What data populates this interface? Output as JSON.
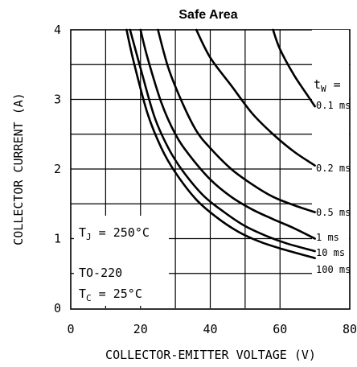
{
  "chart_data": {
    "type": "line",
    "title": "Safe Area",
    "xlabel": "COLLECTOR-EMITTER VOLTAGE (V)",
    "ylabel": "COLLECTOR CURRENT (A)",
    "xlim": [
      0,
      80
    ],
    "ylim": [
      0,
      4
    ],
    "x_ticks": [
      "0",
      "20",
      "40",
      "60",
      "80"
    ],
    "y_ticks": [
      "0",
      "1",
      "2",
      "3",
      "4"
    ],
    "grid": true,
    "legend_header": "tW =",
    "annotation": {
      "line1": "TJ = 250°C",
      "line2": "TO-220",
      "line3": "TC = 25°C"
    },
    "series": [
      {
        "name": "0.1 ms",
        "x": [
          58,
          60,
          64,
          68,
          70
        ],
        "y": [
          4.0,
          3.72,
          3.35,
          3.05,
          2.9
        ]
      },
      {
        "name": "0.2 ms",
        "x": [
          36,
          40,
          46,
          52,
          58,
          64,
          70
        ],
        "y": [
          4.0,
          3.6,
          3.2,
          2.8,
          2.5,
          2.25,
          2.05
        ]
      },
      {
        "name": "0.5 ms",
        "x": [
          25,
          28,
          32,
          36,
          40,
          46,
          52,
          58,
          64,
          70
        ],
        "y": [
          4.0,
          3.45,
          2.95,
          2.55,
          2.3,
          2.0,
          1.78,
          1.6,
          1.48,
          1.38
        ]
      },
      {
        "name": "1 ms",
        "x": [
          20,
          22,
          26,
          30,
          34,
          40,
          46,
          52,
          58,
          64,
          70
        ],
        "y": [
          4.0,
          3.6,
          2.95,
          2.5,
          2.2,
          1.85,
          1.6,
          1.42,
          1.28,
          1.15,
          1.0
        ]
      },
      {
        "name": "10 ms",
        "x": [
          17,
          20,
          24,
          28,
          32,
          38,
          44,
          50,
          56,
          62,
          70
        ],
        "y": [
          4.0,
          3.45,
          2.75,
          2.3,
          1.98,
          1.62,
          1.38,
          1.18,
          1.04,
          0.93,
          0.82
        ]
      },
      {
        "name": "100 ms",
        "x": [
          16,
          18,
          22,
          26,
          30,
          36,
          42,
          48,
          54,
          60,
          70
        ],
        "y": [
          4.0,
          3.55,
          2.8,
          2.3,
          1.95,
          1.56,
          1.3,
          1.1,
          0.96,
          0.86,
          0.72
        ]
      }
    ]
  }
}
